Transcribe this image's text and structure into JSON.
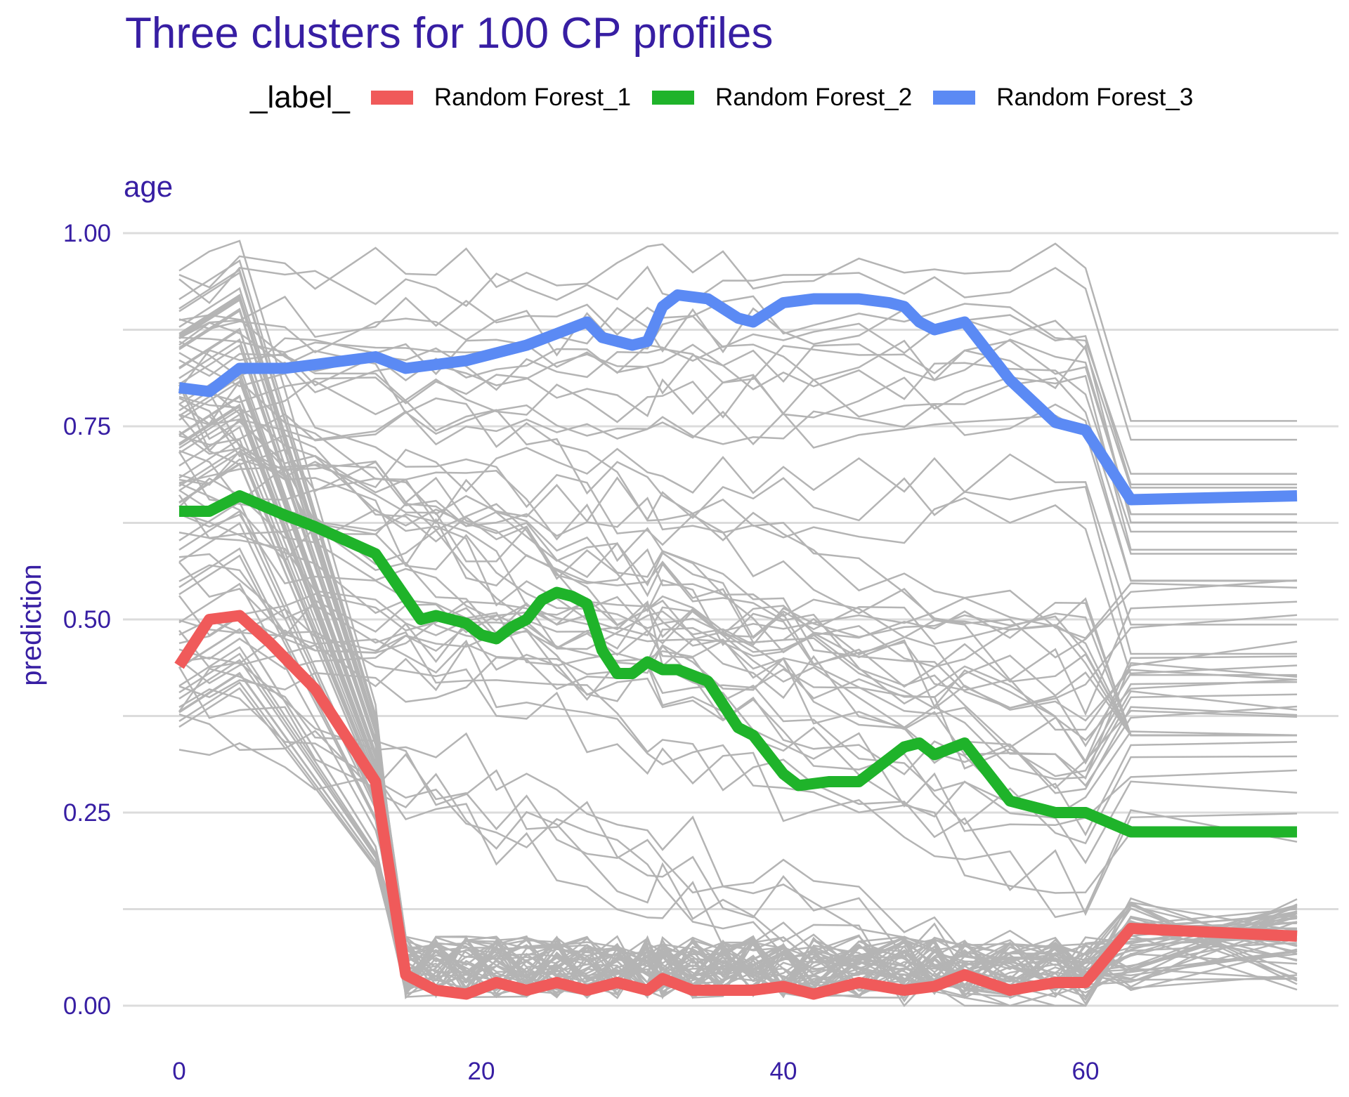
{
  "chart_data": {
    "type": "line",
    "title": "Three clusters for 100 CP profiles",
    "panel": "age",
    "xlabel": "",
    "ylabel": "prediction",
    "xlim": [
      0,
      74
    ],
    "ylim": [
      0,
      1
    ],
    "x_ticks": [
      "0",
      "20",
      "40",
      "60"
    ],
    "y_ticks": [
      "0.00",
      "0.25",
      "0.50",
      "0.75",
      "1.00"
    ],
    "grid": true,
    "legend": {
      "title": "_label_",
      "position": "top",
      "items": [
        "Random Forest_1",
        "Random Forest_2",
        "Random Forest_3"
      ]
    },
    "series": [
      {
        "name": "Random Forest_1",
        "color": "#f05a5a",
        "x": [
          0,
          2,
          4,
          6,
          9,
          13,
          15,
          17,
          19,
          21,
          23,
          25,
          27,
          29,
          31,
          32,
          34,
          36,
          38,
          40,
          42,
          45,
          48,
          50,
          52,
          55,
          58,
          60,
          63,
          74
        ],
        "y": [
          0.44,
          0.5,
          0.505,
          0.47,
          0.41,
          0.29,
          0.04,
          0.02,
          0.015,
          0.03,
          0.02,
          0.03,
          0.02,
          0.03,
          0.02,
          0.035,
          0.02,
          0.02,
          0.02,
          0.025,
          0.015,
          0.03,
          0.02,
          0.025,
          0.04,
          0.02,
          0.03,
          0.03,
          0.1,
          0.09
        ]
      },
      {
        "name": "Random Forest_2",
        "color": "#1fb32a",
        "x": [
          0,
          2,
          4,
          7,
          9,
          13,
          16,
          17,
          19,
          20,
          21,
          22,
          23,
          24,
          25,
          26,
          27,
          28,
          29,
          30,
          31,
          32,
          33,
          35,
          37,
          38,
          40,
          41,
          43,
          45,
          48,
          49,
          50,
          52,
          55,
          58,
          60,
          63,
          74
        ],
        "y": [
          0.64,
          0.64,
          0.66,
          0.635,
          0.62,
          0.585,
          0.5,
          0.505,
          0.495,
          0.48,
          0.475,
          0.49,
          0.5,
          0.525,
          0.535,
          0.53,
          0.52,
          0.46,
          0.43,
          0.43,
          0.445,
          0.435,
          0.435,
          0.42,
          0.36,
          0.35,
          0.3,
          0.285,
          0.29,
          0.29,
          0.335,
          0.34,
          0.325,
          0.34,
          0.265,
          0.25,
          0.25,
          0.225,
          0.225
        ]
      },
      {
        "name": "Random Forest_3",
        "color": "#5b8af4",
        "x": [
          0,
          2,
          4,
          7,
          9,
          13,
          15,
          17,
          19,
          23,
          25,
          27,
          28,
          30,
          31,
          32,
          33,
          35,
          37,
          38,
          40,
          42,
          44,
          45,
          47,
          48,
          49,
          50,
          52,
          55,
          58,
          60,
          63,
          74
        ],
        "y": [
          0.8,
          0.795,
          0.825,
          0.825,
          0.83,
          0.84,
          0.825,
          0.83,
          0.835,
          0.855,
          0.87,
          0.885,
          0.865,
          0.855,
          0.86,
          0.905,
          0.92,
          0.915,
          0.89,
          0.885,
          0.91,
          0.915,
          0.915,
          0.915,
          0.91,
          0.905,
          0.885,
          0.875,
          0.885,
          0.81,
          0.755,
          0.745,
          0.655,
          0.66
        ]
      }
    ],
    "background_profiles": {
      "count": 100,
      "color": "#b4b4b4",
      "description_values": [
        0.955,
        0.93,
        0.9,
        0.87,
        0.85,
        0.8,
        0.78,
        0.76,
        0.73,
        0.7,
        0.68,
        0.65,
        0.62,
        0.6,
        0.58,
        0.56,
        0.54,
        0.52,
        0.5,
        0.48,
        0.46,
        0.44,
        0.42,
        0.4,
        0.38,
        0.36
      ]
    }
  }
}
